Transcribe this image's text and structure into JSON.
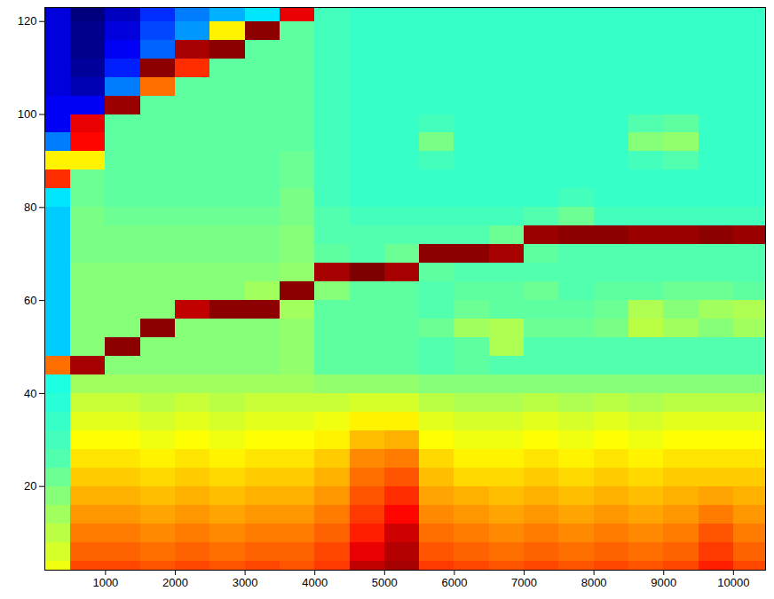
{
  "chart_data": {
    "type": "heatmap",
    "x": [
      250,
      750,
      1250,
      1750,
      2250,
      2750,
      3250,
      3750,
      4250,
      4750,
      5250,
      5750,
      6250,
      6750,
      7250,
      7750,
      8250,
      8750,
      9250,
      9750,
      10250
    ],
    "y": [
      2,
      6,
      10,
      14,
      18,
      22,
      26,
      30,
      34,
      38,
      42,
      46,
      50,
      54,
      58,
      62,
      66,
      70,
      74,
      78,
      82,
      86,
      90,
      94,
      98,
      102,
      106,
      110,
      114,
      118,
      122
    ],
    "values": [
      [
        5.8,
        7.3,
        7.3,
        7.2,
        7.3,
        7.2,
        7.3,
        7.2,
        7.4,
        8.3,
        8.5,
        7.4,
        7.3,
        7.2,
        7.3,
        7.2,
        7.3,
        7.2,
        7.3,
        7.6,
        7.3
      ],
      [
        5.6,
        7.1,
        7.1,
        7.0,
        7.1,
        7.0,
        7.1,
        7.1,
        7.3,
        8.0,
        8.4,
        7.2,
        7.1,
        7.0,
        7.1,
        7.0,
        7.1,
        7.0,
        7.1,
        7.4,
        7.1
      ],
      [
        5.4,
        6.9,
        6.9,
        6.8,
        6.9,
        6.8,
        6.9,
        6.9,
        7.1,
        7.6,
        8.2,
        7.0,
        6.9,
        6.8,
        6.9,
        6.8,
        6.9,
        6.8,
        6.9,
        7.2,
        6.9
      ],
      [
        5.2,
        6.7,
        6.7,
        6.6,
        6.7,
        6.6,
        6.7,
        6.7,
        6.9,
        7.4,
        7.8,
        6.8,
        6.7,
        6.6,
        6.7,
        6.6,
        6.7,
        6.6,
        6.7,
        6.9,
        6.7
      ],
      [
        5.0,
        6.5,
        6.5,
        6.4,
        6.5,
        6.4,
        6.5,
        6.5,
        6.7,
        7.2,
        7.5,
        6.6,
        6.5,
        6.4,
        6.5,
        6.4,
        6.5,
        6.4,
        6.5,
        6.6,
        6.5
      ],
      [
        4.8,
        6.3,
        6.3,
        6.2,
        6.3,
        6.2,
        6.3,
        6.3,
        6.5,
        7.0,
        7.2,
        6.4,
        6.2,
        6.2,
        6.3,
        6.2,
        6.3,
        6.2,
        6.3,
        6.3,
        6.3
      ],
      [
        4.6,
        6.1,
        6.1,
        6.0,
        6.1,
        6.0,
        6.1,
        6.1,
        6.3,
        6.8,
        6.9,
        6.2,
        6.0,
        6.0,
        6.1,
        6.0,
        6.1,
        6.0,
        6.1,
        6.1,
        6.1
      ],
      [
        4.5,
        5.9,
        5.9,
        5.8,
        5.9,
        5.8,
        5.9,
        5.9,
        6.0,
        6.4,
        6.5,
        5.9,
        5.8,
        5.8,
        5.9,
        5.8,
        5.9,
        5.8,
        5.9,
        5.9,
        5.9
      ],
      [
        4.4,
        5.7,
        5.7,
        5.6,
        5.7,
        5.6,
        5.7,
        5.7,
        5.8,
        6.0,
        6.0,
        5.7,
        5.6,
        5.6,
        5.7,
        5.6,
        5.7,
        5.6,
        5.7,
        5.7,
        5.7
      ],
      [
        4.3,
        5.5,
        5.5,
        5.4,
        5.5,
        5.4,
        5.5,
        5.5,
        5.5,
        5.6,
        5.6,
        5.4,
        5.3,
        5.3,
        5.4,
        5.3,
        5.4,
        5.3,
        5.4,
        5.4,
        5.4
      ],
      [
        4.2,
        5.2,
        5.2,
        5.2,
        5.2,
        5.2,
        5.2,
        5.2,
        5.1,
        5.1,
        5.1,
        5.0,
        5.0,
        5.0,
        5.0,
        5.0,
        5.0,
        5.0,
        5.0,
        5.0,
        5.0
      ],
      [
        7.0,
        8.5,
        5.0,
        5.0,
        5.0,
        5.0,
        5.0,
        5.1,
        4.7,
        4.7,
        4.7,
        4.6,
        4.7,
        4.6,
        4.6,
        4.6,
        4.6,
        4.6,
        4.6,
        4.6,
        4.6
      ],
      [
        3.6,
        5.0,
        8.7,
        5.0,
        5.0,
        5.0,
        5.0,
        5.1,
        4.7,
        4.7,
        4.7,
        4.6,
        4.7,
        5.3,
        4.6,
        4.6,
        4.6,
        4.6,
        4.6,
        4.6,
        4.6
      ],
      [
        3.6,
        5.0,
        5.0,
        8.7,
        5.0,
        5.0,
        5.0,
        5.1,
        4.7,
        4.7,
        4.7,
        4.8,
        5.2,
        5.3,
        4.8,
        4.8,
        4.9,
        5.4,
        5.2,
        5.0,
        5.2
      ],
      [
        3.6,
        5.0,
        5.0,
        5.0,
        8.3,
        8.7,
        8.7,
        5.2,
        4.7,
        4.7,
        4.7,
        4.6,
        4.8,
        4.7,
        4.7,
        4.7,
        4.8,
        5.3,
        5.0,
        5.2,
        5.3
      ],
      [
        3.6,
        5.0,
        5.0,
        5.0,
        5.0,
        5.0,
        5.2,
        8.7,
        5.0,
        4.7,
        4.7,
        4.6,
        4.7,
        4.7,
        4.8,
        4.6,
        4.7,
        4.7,
        4.8,
        4.8,
        4.7
      ],
      [
        3.6,
        5.0,
        5.0,
        5.0,
        5.0,
        5.0,
        5.0,
        5.1,
        8.5,
        8.8,
        8.5,
        4.7,
        4.6,
        4.6,
        4.6,
        4.6,
        4.6,
        4.6,
        4.6,
        4.6,
        4.6
      ],
      [
        3.6,
        4.9,
        4.9,
        4.9,
        4.9,
        4.9,
        4.9,
        5.0,
        4.7,
        4.6,
        4.8,
        8.7,
        8.7,
        8.5,
        4.7,
        4.6,
        4.6,
        4.6,
        4.6,
        4.6,
        4.6
      ],
      [
        3.6,
        4.9,
        4.9,
        4.9,
        4.9,
        4.9,
        4.9,
        5.0,
        4.6,
        4.6,
        4.6,
        4.6,
        4.6,
        4.8,
        8.6,
        8.7,
        8.7,
        8.6,
        8.6,
        8.7,
        8.6
      ],
      [
        3.6,
        4.9,
        4.8,
        4.8,
        4.8,
        4.8,
        4.8,
        4.9,
        4.6,
        4.5,
        4.5,
        4.5,
        4.5,
        4.5,
        4.6,
        4.8,
        4.5,
        4.5,
        4.5,
        4.5,
        4.5
      ],
      [
        3.8,
        4.8,
        4.7,
        4.7,
        4.7,
        4.7,
        4.7,
        4.9,
        4.5,
        4.4,
        4.4,
        4.4,
        4.4,
        4.4,
        4.4,
        4.5,
        4.4,
        4.4,
        4.4,
        4.4,
        4.4
      ],
      [
        7.5,
        4.8,
        4.7,
        4.7,
        4.7,
        4.7,
        4.7,
        4.8,
        4.5,
        4.4,
        4.4,
        4.4,
        4.4,
        4.4,
        4.4,
        4.4,
        4.4,
        4.4,
        4.4,
        4.4,
        4.4
      ],
      [
        6.0,
        6.0,
        4.7,
        4.7,
        4.7,
        4.7,
        4.7,
        4.8,
        4.5,
        4.4,
        4.4,
        4.5,
        4.4,
        4.4,
        4.4,
        4.4,
        4.4,
        4.5,
        4.6,
        4.4,
        4.4
      ],
      [
        3.0,
        7.8,
        4.7,
        4.7,
        4.7,
        4.7,
        4.7,
        4.7,
        4.5,
        4.4,
        4.4,
        4.9,
        4.4,
        4.4,
        4.4,
        4.4,
        4.4,
        5.0,
        5.1,
        4.4,
        4.4
      ],
      [
        2.0,
        8.0,
        4.7,
        4.7,
        4.7,
        4.7,
        4.7,
        4.7,
        4.5,
        4.4,
        4.4,
        4.5,
        4.4,
        4.4,
        4.4,
        4.4,
        4.4,
        4.6,
        4.7,
        4.4,
        4.4
      ],
      [
        2.0,
        2.0,
        8.6,
        4.7,
        4.7,
        4.7,
        4.7,
        4.7,
        4.5,
        4.4,
        4.4,
        4.4,
        4.4,
        4.4,
        4.4,
        4.4,
        4.4,
        4.4,
        4.4,
        4.4,
        4.4
      ],
      [
        1.8,
        1.5,
        3.0,
        7.0,
        4.7,
        4.7,
        4.7,
        4.7,
        4.5,
        4.4,
        4.4,
        4.4,
        4.4,
        4.4,
        4.4,
        4.4,
        4.4,
        4.4,
        4.4,
        4.4,
        4.4
      ],
      [
        1.8,
        1.3,
        2.3,
        8.7,
        7.5,
        4.7,
        4.7,
        4.7,
        4.5,
        4.4,
        4.4,
        4.4,
        4.4,
        4.4,
        4.4,
        4.4,
        4.4,
        4.4,
        4.4,
        4.4,
        4.4
      ],
      [
        1.8,
        1.2,
        2.0,
        2.8,
        8.5,
        8.7,
        4.7,
        4.7,
        4.5,
        4.4,
        4.4,
        4.4,
        4.4,
        4.4,
        4.4,
        4.4,
        4.4,
        4.4,
        4.4,
        4.4,
        4.4
      ],
      [
        1.8,
        1.2,
        1.8,
        2.6,
        3.2,
        6.0,
        8.7,
        4.7,
        4.5,
        4.4,
        4.4,
        4.4,
        4.4,
        4.4,
        4.4,
        4.4,
        4.4,
        4.4,
        4.4,
        4.4,
        4.4
      ],
      [
        1.8,
        1.1,
        1.6,
        2.4,
        3.0,
        3.4,
        3.8,
        8.0,
        4.5,
        4.4,
        4.4,
        4.4,
        4.4,
        4.4,
        4.4,
        4.4,
        4.4,
        4.4,
        4.4,
        4.4,
        4.4
      ]
    ],
    "xlim": [
      130,
      10460
    ],
    "ylim": [
      2,
      123
    ],
    "xticks": [
      1000,
      2000,
      3000,
      4000,
      5000,
      6000,
      7000,
      8000,
      9000,
      10000
    ],
    "yticks": [
      20,
      40,
      60,
      80,
      100,
      120
    ]
  }
}
